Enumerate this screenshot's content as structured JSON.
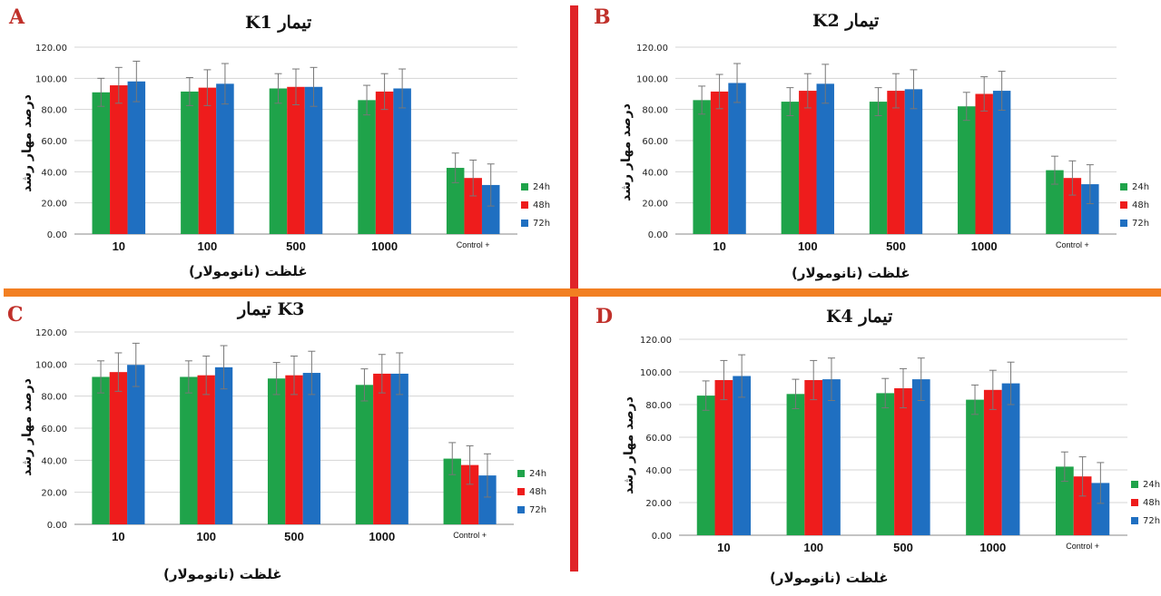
{
  "series_colors": {
    "24h": "#1fa34a",
    "48h": "#ee1c1c",
    "72h": "#1f6fc1"
  },
  "panels": [
    {
      "letter": "A",
      "title": "K1 تیمار",
      "ylabel": "درصد مهار رشد",
      "xlabel": "غلظت (نانومولار)"
    },
    {
      "letter": "B",
      "title": "K2 تیمار",
      "ylabel": "درصد مهار رشد",
      "xlabel": "غلظت (نانومولار)"
    },
    {
      "letter": "C",
      "title": "تیمار K3",
      "ylabel": "درصد مهار رشد",
      "xlabel": "غلظت (نانومولار)"
    },
    {
      "letter": "D",
      "title": "K4 تیمار",
      "ylabel": "درصد مهار رشد",
      "xlabel": "غلظت (نانومولار)"
    }
  ],
  "chart_data": [
    {
      "type": "bar",
      "title": "K1 تیمار",
      "xlabel": "غلظت (نانومولار)",
      "ylabel": "درصد مهار رشد",
      "categories": [
        "10",
        "100",
        "500",
        "1000",
        "Control +"
      ],
      "ylim": [
        0,
        120
      ],
      "yticks": [
        "0.00",
        "20.00",
        "40.00",
        "60.00",
        "80.00",
        "100.00",
        "120.00"
      ],
      "grid": true,
      "legend": "right",
      "series": [
        {
          "name": "24h",
          "values": [
            91,
            91.5,
            93.5,
            86,
            42.5
          ],
          "errors": [
            9,
            9,
            9.5,
            9.5,
            9.5
          ]
        },
        {
          "name": "48h",
          "values": [
            95.5,
            94,
            94.5,
            91.5,
            36
          ],
          "errors": [
            11.5,
            11.5,
            11.5,
            11.5,
            11.5
          ]
        },
        {
          "name": "72h",
          "values": [
            98,
            96.5,
            94.5,
            93.5,
            31.5
          ],
          "errors": [
            13,
            13,
            12.5,
            12.5,
            13.5
          ]
        }
      ]
    },
    {
      "type": "bar",
      "title": "K2 تیمار",
      "xlabel": "غلظت (نانومولار)",
      "ylabel": "درصد مهار رشد",
      "categories": [
        "10",
        "100",
        "500",
        "1000",
        "Control +"
      ],
      "ylim": [
        0,
        120
      ],
      "yticks": [
        "0.00",
        "20.00",
        "40.00",
        "60.00",
        "80.00",
        "100.00",
        "120.00"
      ],
      "grid": true,
      "legend": "right",
      "series": [
        {
          "name": "24h",
          "values": [
            86,
            85,
            85,
            82,
            41
          ],
          "errors": [
            9,
            9,
            9,
            9,
            9
          ]
        },
        {
          "name": "48h",
          "values": [
            91.5,
            92,
            92,
            90,
            36
          ],
          "errors": [
            11,
            11,
            11,
            11,
            11
          ]
        },
        {
          "name": "72h",
          "values": [
            97,
            96.5,
            93,
            92,
            32
          ],
          "errors": [
            12.5,
            12.5,
            12.5,
            12.5,
            12.5
          ]
        }
      ]
    },
    {
      "type": "bar",
      "title": "تیمار K3",
      "xlabel": "غلظت (نانومولار)",
      "ylabel": "درصد مهار رشد",
      "categories": [
        "10",
        "100",
        "500",
        "1000",
        "Control +"
      ],
      "ylim": [
        0,
        120
      ],
      "yticks": [
        "0.00",
        "20.00",
        "40.00",
        "60.00",
        "80.00",
        "100.00",
        "120.00"
      ],
      "grid": true,
      "legend": "right",
      "series": [
        {
          "name": "24h",
          "values": [
            92,
            92,
            91,
            87,
            41
          ],
          "errors": [
            10,
            10,
            10,
            10,
            10
          ]
        },
        {
          "name": "48h",
          "values": [
            95,
            93,
            93,
            94,
            37
          ],
          "errors": [
            12,
            12,
            12,
            12,
            12
          ]
        },
        {
          "name": "72h",
          "values": [
            99.5,
            98,
            94.5,
            94,
            30.5
          ],
          "errors": [
            13.5,
            13.5,
            13.5,
            13,
            13.5
          ]
        }
      ]
    },
    {
      "type": "bar",
      "title": "K4 تیمار",
      "xlabel": "غلظت (نانومولار)",
      "ylabel": "درصد مهار رشد",
      "categories": [
        "10",
        "100",
        "500",
        "1000",
        "Control +"
      ],
      "ylim": [
        0,
        120
      ],
      "yticks": [
        "0.00",
        "20.00",
        "40.00",
        "60.00",
        "80.00",
        "100.00",
        "120.00"
      ],
      "grid": true,
      "legend": "right",
      "series": [
        {
          "name": "24h",
          "values": [
            85.5,
            86.5,
            87,
            83,
            42
          ],
          "errors": [
            9,
            9,
            9,
            9,
            9
          ]
        },
        {
          "name": "48h",
          "values": [
            95,
            95,
            90,
            89,
            36
          ],
          "errors": [
            12,
            12,
            12,
            12,
            12
          ]
        },
        {
          "name": "72h",
          "values": [
            97.5,
            95.5,
            95.5,
            93,
            32
          ],
          "errors": [
            13,
            13,
            13,
            13,
            12.5
          ]
        }
      ]
    }
  ]
}
